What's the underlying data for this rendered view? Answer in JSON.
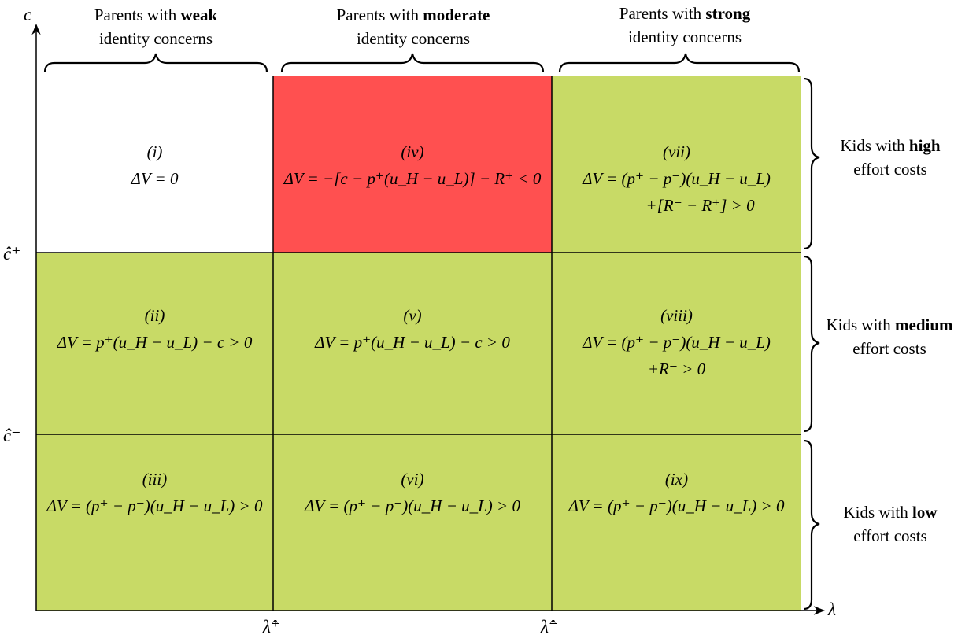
{
  "axes": {
    "y_label": "c",
    "x_label": "λ",
    "y_ticks": [
      "ĉ⁺",
      "ĉ⁻"
    ],
    "x_ticks": [
      "λ̂⁺",
      "λ̂⁻"
    ]
  },
  "columns": [
    {
      "line1_pre": "Parents with ",
      "line1_bold": "weak",
      "line2": "identity concerns"
    },
    {
      "line1_pre": "Parents with ",
      "line1_bold": "moderate",
      "line2": "identity concerns"
    },
    {
      "line1_pre": "Parents with ",
      "line1_bold": "strong",
      "line2": "identity concerns"
    }
  ],
  "rows": [
    {
      "line1_pre": "Kids with ",
      "line1_bold": "high",
      "line2": "effort costs"
    },
    {
      "line1_pre": "Kids with ",
      "line1_bold": "medium",
      "line2": "effort costs"
    },
    {
      "line1_pre": "Kids with ",
      "line1_bold": "low",
      "line2": "effort costs"
    }
  ],
  "colors": {
    "white": "#ffffff",
    "red": "#ff5050",
    "green": "#c8da66"
  },
  "cells": [
    {
      "tag": "(i)",
      "eq1": "ΔV = 0",
      "eq2": "",
      "color": "white"
    },
    {
      "tag": "(iv)",
      "eq1": "ΔV = −[c − p⁺(u_H − u_L)] − R⁺ < 0",
      "eq2": "",
      "color": "red"
    },
    {
      "tag": "(vii)",
      "eq1": "ΔV = (p⁺ − p⁻)(u_H − u_L)",
      "eq2": "+[R⁻ − R⁺] > 0",
      "color": "green"
    },
    {
      "tag": "(ii)",
      "eq1": "ΔV = p⁺(u_H − u_L) − c > 0",
      "eq2": "",
      "color": "green"
    },
    {
      "tag": "(v)",
      "eq1": "ΔV = p⁺(u_H − u_L) − c > 0",
      "eq2": "",
      "color": "green"
    },
    {
      "tag": "(viii)",
      "eq1": "ΔV = (p⁺ − p⁻)(u_H − u_L)",
      "eq2": "+R⁻ > 0",
      "color": "green"
    },
    {
      "tag": "(iii)",
      "eq1": "ΔV = (p⁺ − p⁻)(u_H − u_L) > 0",
      "eq2": "",
      "color": "green"
    },
    {
      "tag": "(vi)",
      "eq1": "ΔV = (p⁺ − p⁻)(u_H − u_L) > 0",
      "eq2": "",
      "color": "green"
    },
    {
      "tag": "(ix)",
      "eq1": "ΔV = (p⁺ − p⁻)(u_H − u_L) > 0",
      "eq2": "",
      "color": "green"
    }
  ]
}
